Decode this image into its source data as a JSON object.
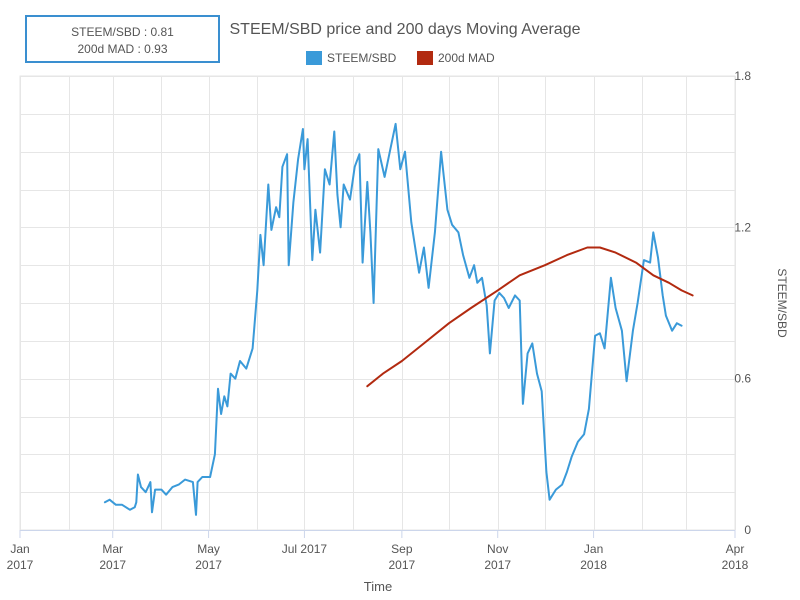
{
  "stats_box": {
    "line1": "STEEM/SBD : 0.81",
    "line2": "200d MAD : 0.93"
  },
  "chart_data": {
    "type": "line",
    "title": "STEEM/SBD price and 200 days Moving Average",
    "xlabel": "Time",
    "ylabel": "STEEM/SBD",
    "xlim": [
      "2017-01-01",
      "2018-04-01"
    ],
    "ylim": [
      0,
      1.8
    ],
    "grid": true,
    "legend_position": "top-center",
    "x_tick_labels": [
      [
        "Jan",
        "2017"
      ],
      [
        "Mar",
        "2017"
      ],
      [
        "May",
        "2017"
      ],
      [
        "Jul 2017",
        ""
      ],
      [
        "Sep",
        "2017"
      ],
      [
        "Nov",
        "2017"
      ],
      [
        "Jan",
        "2018"
      ],
      [
        "Apr",
        "2018"
      ]
    ],
    "x_tick_dates": [
      "2017-01-01",
      "2017-03-01",
      "2017-05-01",
      "2017-07-01",
      "2017-09-01",
      "2017-11-01",
      "2018-01-01",
      "2018-04-01"
    ],
    "y_ticks": [
      0,
      0.6,
      1.2,
      1.8
    ],
    "y_tick_labels": [
      "0",
      "0.6",
      "1.2",
      "1.8"
    ],
    "series": [
      {
        "name": "STEEM/SBD",
        "color": "#3a9ad9",
        "points": [
          [
            "2017-02-24",
            0.11
          ],
          [
            "2017-02-27",
            0.12
          ],
          [
            "2017-03-03",
            0.1
          ],
          [
            "2017-03-07",
            0.1
          ],
          [
            "2017-03-12",
            0.08
          ],
          [
            "2017-03-15",
            0.09
          ],
          [
            "2017-03-16",
            0.11
          ],
          [
            "2017-03-17",
            0.22
          ],
          [
            "2017-03-19",
            0.17
          ],
          [
            "2017-03-22",
            0.15
          ],
          [
            "2017-03-25",
            0.19
          ],
          [
            "2017-03-26",
            0.07
          ],
          [
            "2017-03-28",
            0.16
          ],
          [
            "2017-04-01",
            0.16
          ],
          [
            "2017-04-04",
            0.14
          ],
          [
            "2017-04-08",
            0.17
          ],
          [
            "2017-04-12",
            0.18
          ],
          [
            "2017-04-16",
            0.2
          ],
          [
            "2017-04-21",
            0.19
          ],
          [
            "2017-04-23",
            0.06
          ],
          [
            "2017-04-24",
            0.19
          ],
          [
            "2017-04-27",
            0.21
          ],
          [
            "2017-05-02",
            0.21
          ],
          [
            "2017-05-05",
            0.3
          ],
          [
            "2017-05-07",
            0.56
          ],
          [
            "2017-05-09",
            0.46
          ],
          [
            "2017-05-11",
            0.53
          ],
          [
            "2017-05-13",
            0.49
          ],
          [
            "2017-05-15",
            0.62
          ],
          [
            "2017-05-18",
            0.6
          ],
          [
            "2017-05-21",
            0.67
          ],
          [
            "2017-05-25",
            0.64
          ],
          [
            "2017-05-29",
            0.72
          ],
          [
            "2017-06-01",
            0.95
          ],
          [
            "2017-06-03",
            1.17
          ],
          [
            "2017-06-05",
            1.05
          ],
          [
            "2017-06-08",
            1.37
          ],
          [
            "2017-06-10",
            1.19
          ],
          [
            "2017-06-13",
            1.28
          ],
          [
            "2017-06-15",
            1.24
          ],
          [
            "2017-06-17",
            1.44
          ],
          [
            "2017-06-20",
            1.49
          ],
          [
            "2017-06-21",
            1.05
          ],
          [
            "2017-06-24",
            1.3
          ],
          [
            "2017-06-27",
            1.47
          ],
          [
            "2017-06-30",
            1.59
          ],
          [
            "2017-07-01",
            1.43
          ],
          [
            "2017-07-03",
            1.55
          ],
          [
            "2017-07-06",
            1.07
          ],
          [
            "2017-07-08",
            1.27
          ],
          [
            "2017-07-11",
            1.1
          ],
          [
            "2017-07-14",
            1.43
          ],
          [
            "2017-07-17",
            1.37
          ],
          [
            "2017-07-20",
            1.58
          ],
          [
            "2017-07-22",
            1.33
          ],
          [
            "2017-07-24",
            1.2
          ],
          [
            "2017-07-26",
            1.37
          ],
          [
            "2017-07-30",
            1.31
          ],
          [
            "2017-08-02",
            1.44
          ],
          [
            "2017-08-05",
            1.49
          ],
          [
            "2017-08-07",
            1.06
          ],
          [
            "2017-08-10",
            1.38
          ],
          [
            "2017-08-12",
            1.18
          ],
          [
            "2017-08-14",
            0.9
          ],
          [
            "2017-08-17",
            1.51
          ],
          [
            "2017-08-21",
            1.4
          ],
          [
            "2017-08-24",
            1.49
          ],
          [
            "2017-08-28",
            1.61
          ],
          [
            "2017-08-31",
            1.43
          ],
          [
            "2017-09-03",
            1.5
          ],
          [
            "2017-09-07",
            1.22
          ],
          [
            "2017-09-12",
            1.02
          ],
          [
            "2017-09-15",
            1.12
          ],
          [
            "2017-09-18",
            0.96
          ],
          [
            "2017-09-22",
            1.18
          ],
          [
            "2017-09-26",
            1.5
          ],
          [
            "2017-09-30",
            1.27
          ],
          [
            "2017-10-03",
            1.21
          ],
          [
            "2017-10-07",
            1.18
          ],
          [
            "2017-10-10",
            1.09
          ],
          [
            "2017-10-14",
            1.0
          ],
          [
            "2017-10-17",
            1.05
          ],
          [
            "2017-10-19",
            0.98
          ],
          [
            "2017-10-22",
            1.0
          ],
          [
            "2017-10-25",
            0.89
          ],
          [
            "2017-10-27",
            0.7
          ],
          [
            "2017-10-30",
            0.91
          ],
          [
            "2017-11-02",
            0.94
          ],
          [
            "2017-11-05",
            0.92
          ],
          [
            "2017-11-08",
            0.88
          ],
          [
            "2017-11-12",
            0.93
          ],
          [
            "2017-11-15",
            0.91
          ],
          [
            "2017-11-17",
            0.5
          ],
          [
            "2017-11-20",
            0.7
          ],
          [
            "2017-11-23",
            0.74
          ],
          [
            "2017-11-26",
            0.62
          ],
          [
            "2017-11-29",
            0.55
          ],
          [
            "2017-12-02",
            0.23
          ],
          [
            "2017-12-04",
            0.12
          ],
          [
            "2017-12-08",
            0.16
          ],
          [
            "2017-12-12",
            0.18
          ],
          [
            "2017-12-15",
            0.23
          ],
          [
            "2017-12-18",
            0.29
          ],
          [
            "2017-12-22",
            0.35
          ],
          [
            "2017-12-26",
            0.38
          ],
          [
            "2017-12-29",
            0.48
          ],
          [
            "2018-01-02",
            0.77
          ],
          [
            "2018-01-05",
            0.78
          ],
          [
            "2018-01-08",
            0.72
          ],
          [
            "2018-01-12",
            1.0
          ],
          [
            "2018-01-15",
            0.88
          ],
          [
            "2018-01-19",
            0.79
          ],
          [
            "2018-01-22",
            0.59
          ],
          [
            "2018-01-26",
            0.79
          ],
          [
            "2018-01-29",
            0.9
          ],
          [
            "2018-02-02",
            1.07
          ],
          [
            "2018-02-06",
            1.06
          ],
          [
            "2018-02-08",
            1.18
          ],
          [
            "2018-02-11",
            1.08
          ],
          [
            "2018-02-14",
            0.93
          ],
          [
            "2018-02-16",
            0.85
          ],
          [
            "2018-02-20",
            0.79
          ],
          [
            "2018-02-23",
            0.82
          ],
          [
            "2018-02-26",
            0.81
          ]
        ]
      },
      {
        "name": "200d MAD",
        "color": "#b22a10",
        "points": [
          [
            "2017-08-10",
            0.57
          ],
          [
            "2017-08-20",
            0.62
          ],
          [
            "2017-09-01",
            0.67
          ],
          [
            "2017-09-15",
            0.74
          ],
          [
            "2017-10-01",
            0.82
          ],
          [
            "2017-10-15",
            0.88
          ],
          [
            "2017-11-01",
            0.95
          ],
          [
            "2017-11-15",
            1.01
          ],
          [
            "2017-12-01",
            1.05
          ],
          [
            "2017-12-15",
            1.09
          ],
          [
            "2017-12-28",
            1.12
          ],
          [
            "2018-01-05",
            1.12
          ],
          [
            "2018-01-15",
            1.1
          ],
          [
            "2018-01-28",
            1.06
          ],
          [
            "2018-02-08",
            1.01
          ],
          [
            "2018-02-18",
            0.98
          ],
          [
            "2018-02-26",
            0.95
          ],
          [
            "2018-03-05",
            0.93
          ]
        ]
      }
    ]
  }
}
